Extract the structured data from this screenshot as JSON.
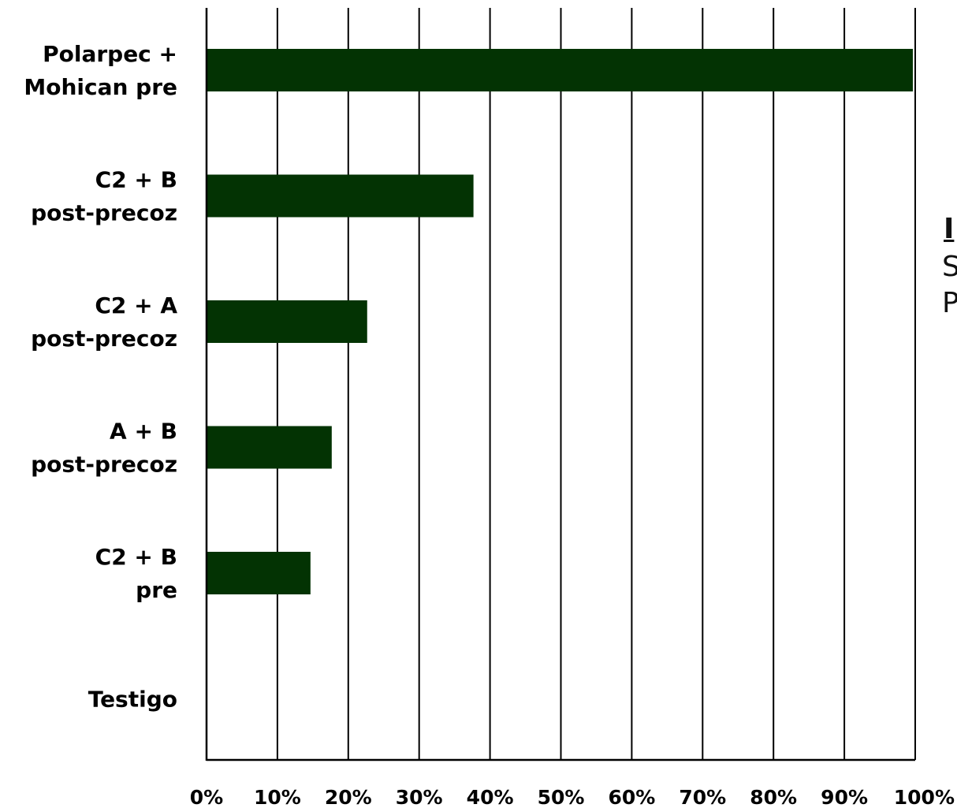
{
  "chart_data": {
    "type": "bar",
    "orientation": "horizontal",
    "categories": [
      [
        "Polarpec +",
        "Mohican pre"
      ],
      [
        "C2 + B",
        "post-precoz"
      ],
      [
        "C2 + A",
        "post-precoz"
      ],
      [
        "A + B",
        "post-precoz"
      ],
      [
        "C2 + B",
        "pre"
      ],
      [
        "Testigo"
      ]
    ],
    "values": [
      100,
      38,
      23,
      18,
      15,
      0
    ],
    "xlim": [
      0,
      100
    ],
    "xticks": [
      "0%",
      "10%",
      "20%",
      "30%",
      "40%",
      "50%",
      "60%",
      "70%",
      "80%",
      "90%",
      "100%"
    ],
    "grid": "vertical",
    "title": "",
    "xlabel": "",
    "ylabel": "",
    "bar_color": "#033303"
  },
  "side_text": {
    "line1": "I",
    "line2": "S",
    "line3": "P"
  }
}
